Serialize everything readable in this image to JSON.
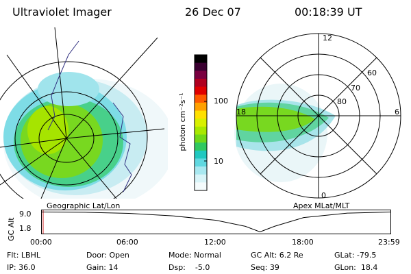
{
  "header": {
    "instrument": "Ultraviolet Imager",
    "date": "26 Dec 07",
    "time": "00:18:39 UT"
  },
  "panels": {
    "left_label": "Geographic Lat/Lon",
    "right_label": "Apex MLat/MLT",
    "polar_hour_labels": [
      "12",
      "18",
      "6",
      "0"
    ],
    "polar_lat_labels": [
      "60",
      "70",
      "80"
    ]
  },
  "colorbar": {
    "label": "photon cm⁻²s⁻¹",
    "ticks": [
      "100",
      "10"
    ],
    "colors": [
      "#000000",
      "#3a0030",
      "#7a0040",
      "#b00020",
      "#e00000",
      "#ff5a00",
      "#ffa000",
      "#ffe000",
      "#d8f000",
      "#a8e800",
      "#70d818",
      "#30c860",
      "#20c8c0",
      "#60d8e0",
      "#a8e8f0",
      "#d8f4f8",
      "#f4fbfc"
    ]
  },
  "altitude_strip": {
    "y_label": "GC Alt",
    "y_ticks": [
      "9.0",
      "1.8"
    ],
    "x_ticks": [
      "00:00",
      "06:00",
      "12:00",
      "18:00",
      "23:59"
    ],
    "chart_data": {
      "type": "line",
      "x": [
        "00:00",
        "03:00",
        "06:00",
        "09:00",
        "12:00",
        "14:00",
        "15:00",
        "16:00",
        "18:00",
        "21:00",
        "23:59"
      ],
      "values": [
        9.0,
        8.9,
        8.5,
        7.6,
        6.0,
        3.8,
        1.8,
        3.8,
        7.0,
        8.6,
        9.0
      ],
      "ylabel": "GC Alt",
      "ylim": [
        1.8,
        9.0
      ]
    }
  },
  "footer": {
    "row1": [
      "Flt: LBHL",
      "Door: Open",
      "Mode: Normal",
      "GC Alt: 6.2 Re",
      "GLat: -79.5"
    ],
    "row2": [
      "IP: 36.0",
      "Gain: 14",
      "Dsp:    -5.0",
      "Seq: 39",
      "GLon:  18.4"
    ]
  }
}
